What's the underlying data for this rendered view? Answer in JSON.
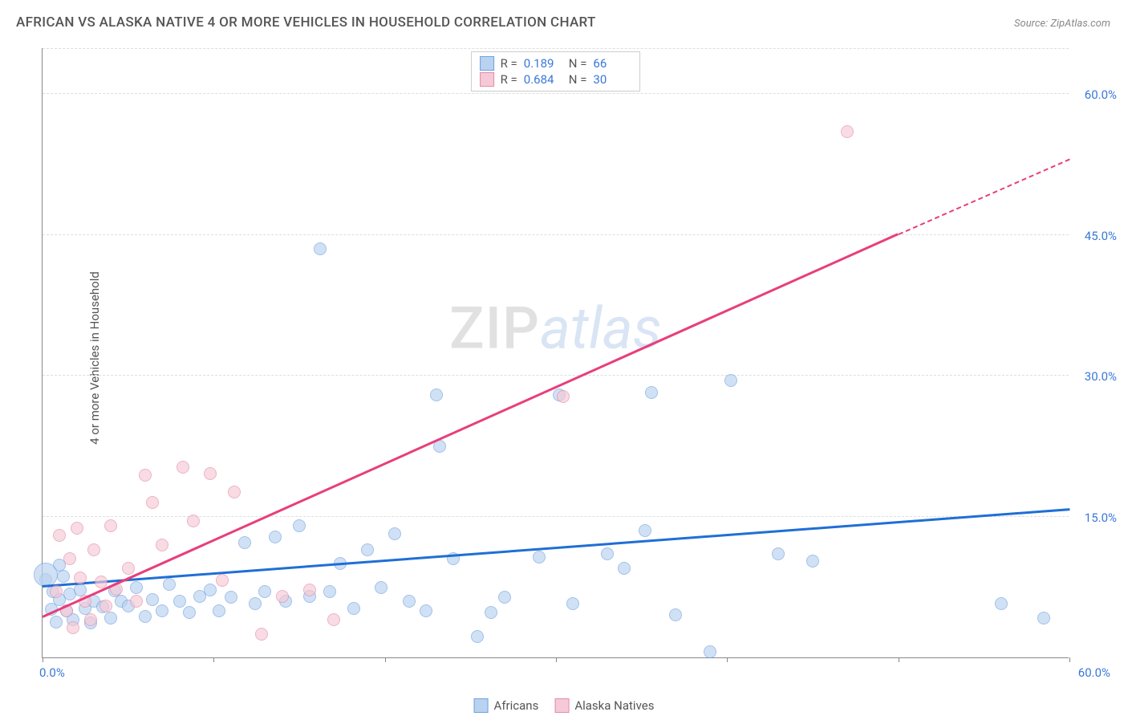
{
  "title": "AFRICAN VS ALASKA NATIVE 4 OR MORE VEHICLES IN HOUSEHOLD CORRELATION CHART",
  "source_label": "Source:",
  "source_value": "ZipAtlas.com",
  "ylabel": "4 or more Vehicles in Household",
  "watermark_a": "ZIP",
  "watermark_b": "atlas",
  "chart": {
    "type": "scatter-correlation",
    "background_color": "#ffffff",
    "grid_color": "#dddddd",
    "axis_color": "#888888",
    "tick_label_color": "#3a78d8",
    "xlim": [
      0,
      60
    ],
    "ylim": [
      0,
      65
    ],
    "xticks": [
      0,
      10,
      20,
      30,
      40,
      50,
      60
    ],
    "ygridlines": [
      15,
      30,
      45,
      60
    ],
    "ytick_labels": [
      "15.0%",
      "30.0%",
      "45.0%",
      "60.0%"
    ],
    "xaxis_min_label": "0.0%",
    "xaxis_max_label": "60.0%",
    "series": [
      {
        "name": "Africans",
        "fill": "#b9d2f0",
        "stroke": "#6fa0e0",
        "fill_opacity": 0.65,
        "marker_r": 8,
        "line_color": "#1f6fd4",
        "trend": {
          "x1": 0,
          "y1": 7.5,
          "x2": 60,
          "y2": 15.7,
          "dash_from_x": 60
        },
        "R": "0.189",
        "N": "66",
        "points": [
          [
            0.2,
            8.3
          ],
          [
            0.5,
            5.1
          ],
          [
            0.6,
            7.0
          ],
          [
            0.8,
            3.8
          ],
          [
            1.0,
            6.2
          ],
          [
            1.2,
            8.6
          ],
          [
            1.4,
            5.0
          ],
          [
            1.6,
            6.8
          ],
          [
            1.8,
            4.0
          ],
          [
            2.2,
            7.2
          ],
          [
            2.5,
            5.2
          ],
          [
            2.8,
            3.7
          ],
          [
            3.0,
            6.0
          ],
          [
            3.5,
            5.4
          ],
          [
            4.0,
            4.2
          ],
          [
            4.2,
            7.1
          ],
          [
            4.6,
            6.0
          ],
          [
            5.0,
            5.5
          ],
          [
            5.5,
            7.4
          ],
          [
            6.0,
            4.4
          ],
          [
            6.4,
            6.2
          ],
          [
            7.0,
            5.0
          ],
          [
            7.4,
            7.8
          ],
          [
            8.0,
            6.0
          ],
          [
            8.6,
            4.8
          ],
          [
            9.2,
            6.5
          ],
          [
            9.8,
            7.2
          ],
          [
            10.3,
            5.0
          ],
          [
            11.0,
            6.4
          ],
          [
            11.8,
            12.2
          ],
          [
            12.4,
            5.7
          ],
          [
            13.0,
            7.0
          ],
          [
            13.6,
            12.8
          ],
          [
            14.2,
            6.0
          ],
          [
            15.0,
            14.0
          ],
          [
            15.6,
            6.5
          ],
          [
            16.2,
            43.5
          ],
          [
            16.8,
            7.0
          ],
          [
            17.4,
            10.0
          ],
          [
            18.2,
            5.2
          ],
          [
            19.0,
            11.5
          ],
          [
            19.8,
            7.4
          ],
          [
            20.6,
            13.2
          ],
          [
            21.4,
            6.0
          ],
          [
            22.4,
            5.0
          ],
          [
            23.0,
            28.0
          ],
          [
            23.2,
            22.5
          ],
          [
            24.0,
            10.5
          ],
          [
            25.4,
            2.2
          ],
          [
            26.2,
            4.8
          ],
          [
            27.0,
            6.4
          ],
          [
            29.0,
            10.7
          ],
          [
            30.2,
            28.0
          ],
          [
            31.0,
            5.7
          ],
          [
            33.0,
            11.0
          ],
          [
            34.0,
            9.5
          ],
          [
            35.2,
            13.5
          ],
          [
            35.6,
            28.2
          ],
          [
            37.0,
            4.5
          ],
          [
            39.0,
            0.6
          ],
          [
            40.2,
            29.5
          ],
          [
            43.0,
            11.0
          ],
          [
            45.0,
            10.3
          ],
          [
            56.0,
            5.7
          ],
          [
            58.5,
            4.2
          ],
          [
            1.0,
            9.8
          ]
        ],
        "large_points": [
          {
            "x": 0.2,
            "y": 8.8,
            "r": 15
          }
        ]
      },
      {
        "name": "Alaska Natives",
        "fill": "#f6c9d6",
        "stroke": "#e48ba8",
        "fill_opacity": 0.65,
        "marker_r": 8,
        "line_color": "#e83e7b",
        "trend": {
          "x1": 0,
          "y1": 4.2,
          "x2": 50,
          "y2": 45.0,
          "dash_from_x": 50,
          "dash_to_x": 60,
          "dash_to_y": 53.0
        },
        "R": "0.684",
        "N": "30",
        "points": [
          [
            0.8,
            7.0
          ],
          [
            1.0,
            13.0
          ],
          [
            1.4,
            5.0
          ],
          [
            1.6,
            10.5
          ],
          [
            1.8,
            3.2
          ],
          [
            2.0,
            13.8
          ],
          [
            2.2,
            8.5
          ],
          [
            2.5,
            6.0
          ],
          [
            2.8,
            4.0
          ],
          [
            3.0,
            11.5
          ],
          [
            3.4,
            8.0
          ],
          [
            3.7,
            5.5
          ],
          [
            4.0,
            14.0
          ],
          [
            4.3,
            7.3
          ],
          [
            5.0,
            9.5
          ],
          [
            5.5,
            6.0
          ],
          [
            6.0,
            19.4
          ],
          [
            6.4,
            16.5
          ],
          [
            7.0,
            12.0
          ],
          [
            8.2,
            20.3
          ],
          [
            8.8,
            14.5
          ],
          [
            9.8,
            19.6
          ],
          [
            10.5,
            8.2
          ],
          [
            11.2,
            17.6
          ],
          [
            12.8,
            2.5
          ],
          [
            14.0,
            6.5
          ],
          [
            15.6,
            7.2
          ],
          [
            17.0,
            4.0
          ],
          [
            30.4,
            27.8
          ],
          [
            47.0,
            56.0
          ]
        ],
        "large_points": []
      }
    ],
    "stat_legend": {
      "R_label": "R  =",
      "N_label": "N  ="
    },
    "bottom_legend_labels": [
      "Africans",
      "Alaska Natives"
    ]
  }
}
